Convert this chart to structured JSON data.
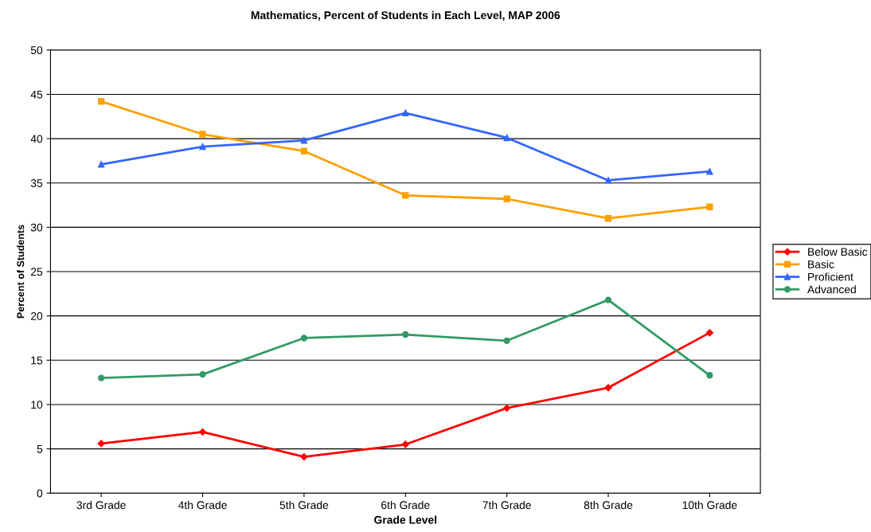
{
  "chart_data": {
    "type": "line",
    "title": "Mathematics, Percent of Students in Each Level, MAP 2006",
    "xlabel": "Grade Level",
    "ylabel": "Percent of Students",
    "categories": [
      "3rd Grade",
      "4th Grade",
      "5th Grade",
      "6th Grade",
      "7th Grade",
      "8th Grade",
      "10th Grade"
    ],
    "series": [
      {
        "name": "Below Basic",
        "color": "#ff0000",
        "marker": "diamond",
        "values": [
          5.6,
          6.9,
          4.1,
          5.5,
          9.6,
          11.9,
          18.1
        ]
      },
      {
        "name": "Basic",
        "color": "#ffa000",
        "marker": "square",
        "values": [
          44.2,
          40.5,
          38.6,
          33.6,
          33.2,
          31.0,
          32.3
        ]
      },
      {
        "name": "Proficient",
        "color": "#3366ff",
        "marker": "triangle",
        "values": [
          37.1,
          39.1,
          39.8,
          42.9,
          40.1,
          35.3,
          36.3
        ]
      },
      {
        "name": "Advanced",
        "color": "#339966",
        "marker": "circle",
        "values": [
          13.0,
          13.4,
          17.5,
          17.9,
          17.2,
          21.8,
          13.3
        ]
      }
    ],
    "ylim": [
      0,
      50
    ],
    "yticks": [
      0,
      5,
      10,
      15,
      20,
      25,
      30,
      35,
      40,
      45,
      50
    ],
    "grid": "y",
    "legend": "right",
    "line_style": "solid"
  }
}
